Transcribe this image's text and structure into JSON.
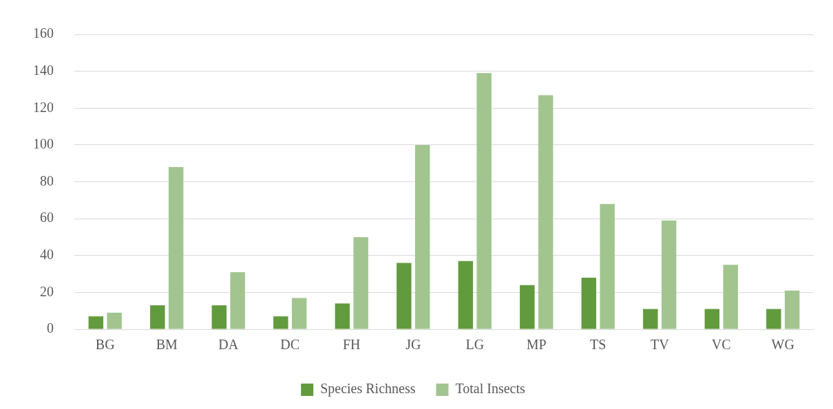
{
  "chart_data": {
    "type": "bar",
    "categories": [
      "BG",
      "BM",
      "DA",
      "DC",
      "FH",
      "JG",
      "LG",
      "MP",
      "TS",
      "TV",
      "VC",
      "WG"
    ],
    "series": [
      {
        "name": "Species Richness",
        "color": "#629b3e",
        "values": [
          7,
          13,
          13,
          7,
          14,
          36,
          37,
          24,
          28,
          11,
          11,
          11
        ]
      },
      {
        "name": "Total Insects",
        "color": "#a2c590",
        "values": [
          9,
          88,
          31,
          17,
          50,
          100,
          139,
          127,
          68,
          59,
          35,
          21
        ]
      }
    ],
    "ylim": [
      0,
      160
    ],
    "yticks": [
      0,
      20,
      40,
      60,
      80,
      100,
      120,
      140,
      160
    ],
    "grid": "y",
    "legend": "bottom"
  }
}
